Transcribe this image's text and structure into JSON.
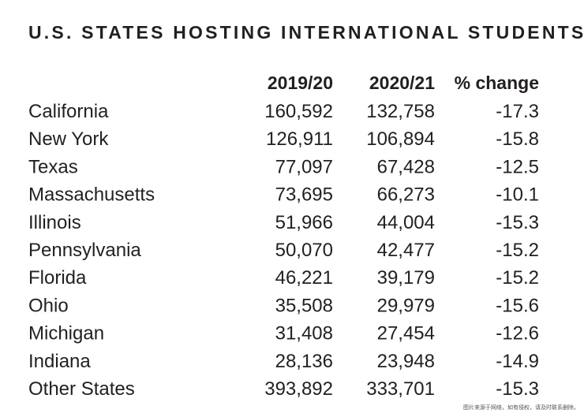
{
  "header": {
    "title": "U.S. STATES HOSTING INTERNATIONAL STUDENTS"
  },
  "table": {
    "columns": [
      "2019/20",
      "2020/21",
      "% change"
    ],
    "rows": [
      [
        "California",
        "160,592",
        "132,758",
        "-17.3"
      ],
      [
        "New York",
        "126,911",
        "106,894",
        "-15.8"
      ],
      [
        "Texas",
        "77,097",
        "67,428",
        "-12.5"
      ],
      [
        "Massachusetts",
        "73,695",
        "66,273",
        "-10.1"
      ],
      [
        "Illinois",
        "51,966",
        "44,004",
        "-15.3"
      ],
      [
        "Pennsylvania",
        "50,070",
        "42,477",
        "-15.2"
      ],
      [
        "Florida",
        "46,221",
        "39,179",
        "-15.2"
      ],
      [
        "Ohio",
        "35,508",
        "29,979",
        "-15.6"
      ],
      [
        "Michigan",
        "31,408",
        "27,454",
        "-12.6"
      ],
      [
        "Indiana",
        "28,136",
        "23,948",
        "-14.9"
      ],
      [
        "Other States",
        "393,892",
        "333,701",
        "-15.3"
      ]
    ]
  },
  "footer": {
    "note": "图片来源于网络，如有侵权，请及时联系删除。"
  }
}
